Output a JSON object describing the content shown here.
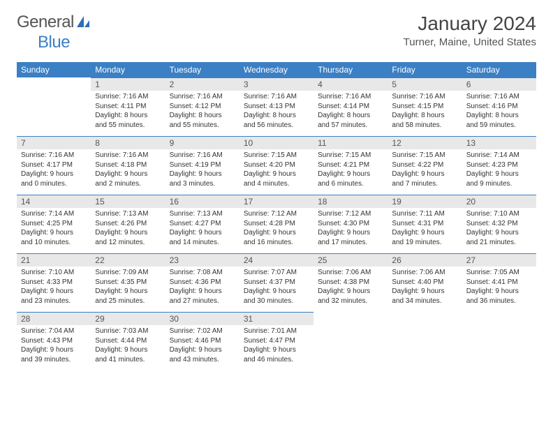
{
  "logo": {
    "word1": "General",
    "word2": "Blue"
  },
  "title": "January 2024",
  "location": "Turner, Maine, United States",
  "day_headers": [
    "Sunday",
    "Monday",
    "Tuesday",
    "Wednesday",
    "Thursday",
    "Friday",
    "Saturday"
  ],
  "header_bg": "#3b7fc4",
  "daynum_bg": "#e8e8e8",
  "border_color": "#3b7fc4",
  "weeks": [
    [
      null,
      {
        "n": "1",
        "sr": "7:16 AM",
        "ss": "4:11 PM",
        "dl": "8 hours and 55 minutes."
      },
      {
        "n": "2",
        "sr": "7:16 AM",
        "ss": "4:12 PM",
        "dl": "8 hours and 55 minutes."
      },
      {
        "n": "3",
        "sr": "7:16 AM",
        "ss": "4:13 PM",
        "dl": "8 hours and 56 minutes."
      },
      {
        "n": "4",
        "sr": "7:16 AM",
        "ss": "4:14 PM",
        "dl": "8 hours and 57 minutes."
      },
      {
        "n": "5",
        "sr": "7:16 AM",
        "ss": "4:15 PM",
        "dl": "8 hours and 58 minutes."
      },
      {
        "n": "6",
        "sr": "7:16 AM",
        "ss": "4:16 PM",
        "dl": "8 hours and 59 minutes."
      }
    ],
    [
      {
        "n": "7",
        "sr": "7:16 AM",
        "ss": "4:17 PM",
        "dl": "9 hours and 0 minutes."
      },
      {
        "n": "8",
        "sr": "7:16 AM",
        "ss": "4:18 PM",
        "dl": "9 hours and 2 minutes."
      },
      {
        "n": "9",
        "sr": "7:16 AM",
        "ss": "4:19 PM",
        "dl": "9 hours and 3 minutes."
      },
      {
        "n": "10",
        "sr": "7:15 AM",
        "ss": "4:20 PM",
        "dl": "9 hours and 4 minutes."
      },
      {
        "n": "11",
        "sr": "7:15 AM",
        "ss": "4:21 PM",
        "dl": "9 hours and 6 minutes."
      },
      {
        "n": "12",
        "sr": "7:15 AM",
        "ss": "4:22 PM",
        "dl": "9 hours and 7 minutes."
      },
      {
        "n": "13",
        "sr": "7:14 AM",
        "ss": "4:23 PM",
        "dl": "9 hours and 9 minutes."
      }
    ],
    [
      {
        "n": "14",
        "sr": "7:14 AM",
        "ss": "4:25 PM",
        "dl": "9 hours and 10 minutes."
      },
      {
        "n": "15",
        "sr": "7:13 AM",
        "ss": "4:26 PM",
        "dl": "9 hours and 12 minutes."
      },
      {
        "n": "16",
        "sr": "7:13 AM",
        "ss": "4:27 PM",
        "dl": "9 hours and 14 minutes."
      },
      {
        "n": "17",
        "sr": "7:12 AM",
        "ss": "4:28 PM",
        "dl": "9 hours and 16 minutes."
      },
      {
        "n": "18",
        "sr": "7:12 AM",
        "ss": "4:30 PM",
        "dl": "9 hours and 17 minutes."
      },
      {
        "n": "19",
        "sr": "7:11 AM",
        "ss": "4:31 PM",
        "dl": "9 hours and 19 minutes."
      },
      {
        "n": "20",
        "sr": "7:10 AM",
        "ss": "4:32 PM",
        "dl": "9 hours and 21 minutes."
      }
    ],
    [
      {
        "n": "21",
        "sr": "7:10 AM",
        "ss": "4:33 PM",
        "dl": "9 hours and 23 minutes."
      },
      {
        "n": "22",
        "sr": "7:09 AM",
        "ss": "4:35 PM",
        "dl": "9 hours and 25 minutes."
      },
      {
        "n": "23",
        "sr": "7:08 AM",
        "ss": "4:36 PM",
        "dl": "9 hours and 27 minutes."
      },
      {
        "n": "24",
        "sr": "7:07 AM",
        "ss": "4:37 PM",
        "dl": "9 hours and 30 minutes."
      },
      {
        "n": "25",
        "sr": "7:06 AM",
        "ss": "4:38 PM",
        "dl": "9 hours and 32 minutes."
      },
      {
        "n": "26",
        "sr": "7:06 AM",
        "ss": "4:40 PM",
        "dl": "9 hours and 34 minutes."
      },
      {
        "n": "27",
        "sr": "7:05 AM",
        "ss": "4:41 PM",
        "dl": "9 hours and 36 minutes."
      }
    ],
    [
      {
        "n": "28",
        "sr": "7:04 AM",
        "ss": "4:43 PM",
        "dl": "9 hours and 39 minutes."
      },
      {
        "n": "29",
        "sr": "7:03 AM",
        "ss": "4:44 PM",
        "dl": "9 hours and 41 minutes."
      },
      {
        "n": "30",
        "sr": "7:02 AM",
        "ss": "4:46 PM",
        "dl": "9 hours and 43 minutes."
      },
      {
        "n": "31",
        "sr": "7:01 AM",
        "ss": "4:47 PM",
        "dl": "9 hours and 46 minutes."
      },
      null,
      null,
      null
    ]
  ],
  "labels": {
    "sunrise": "Sunrise:",
    "sunset": "Sunset:",
    "daylight": "Daylight:"
  }
}
